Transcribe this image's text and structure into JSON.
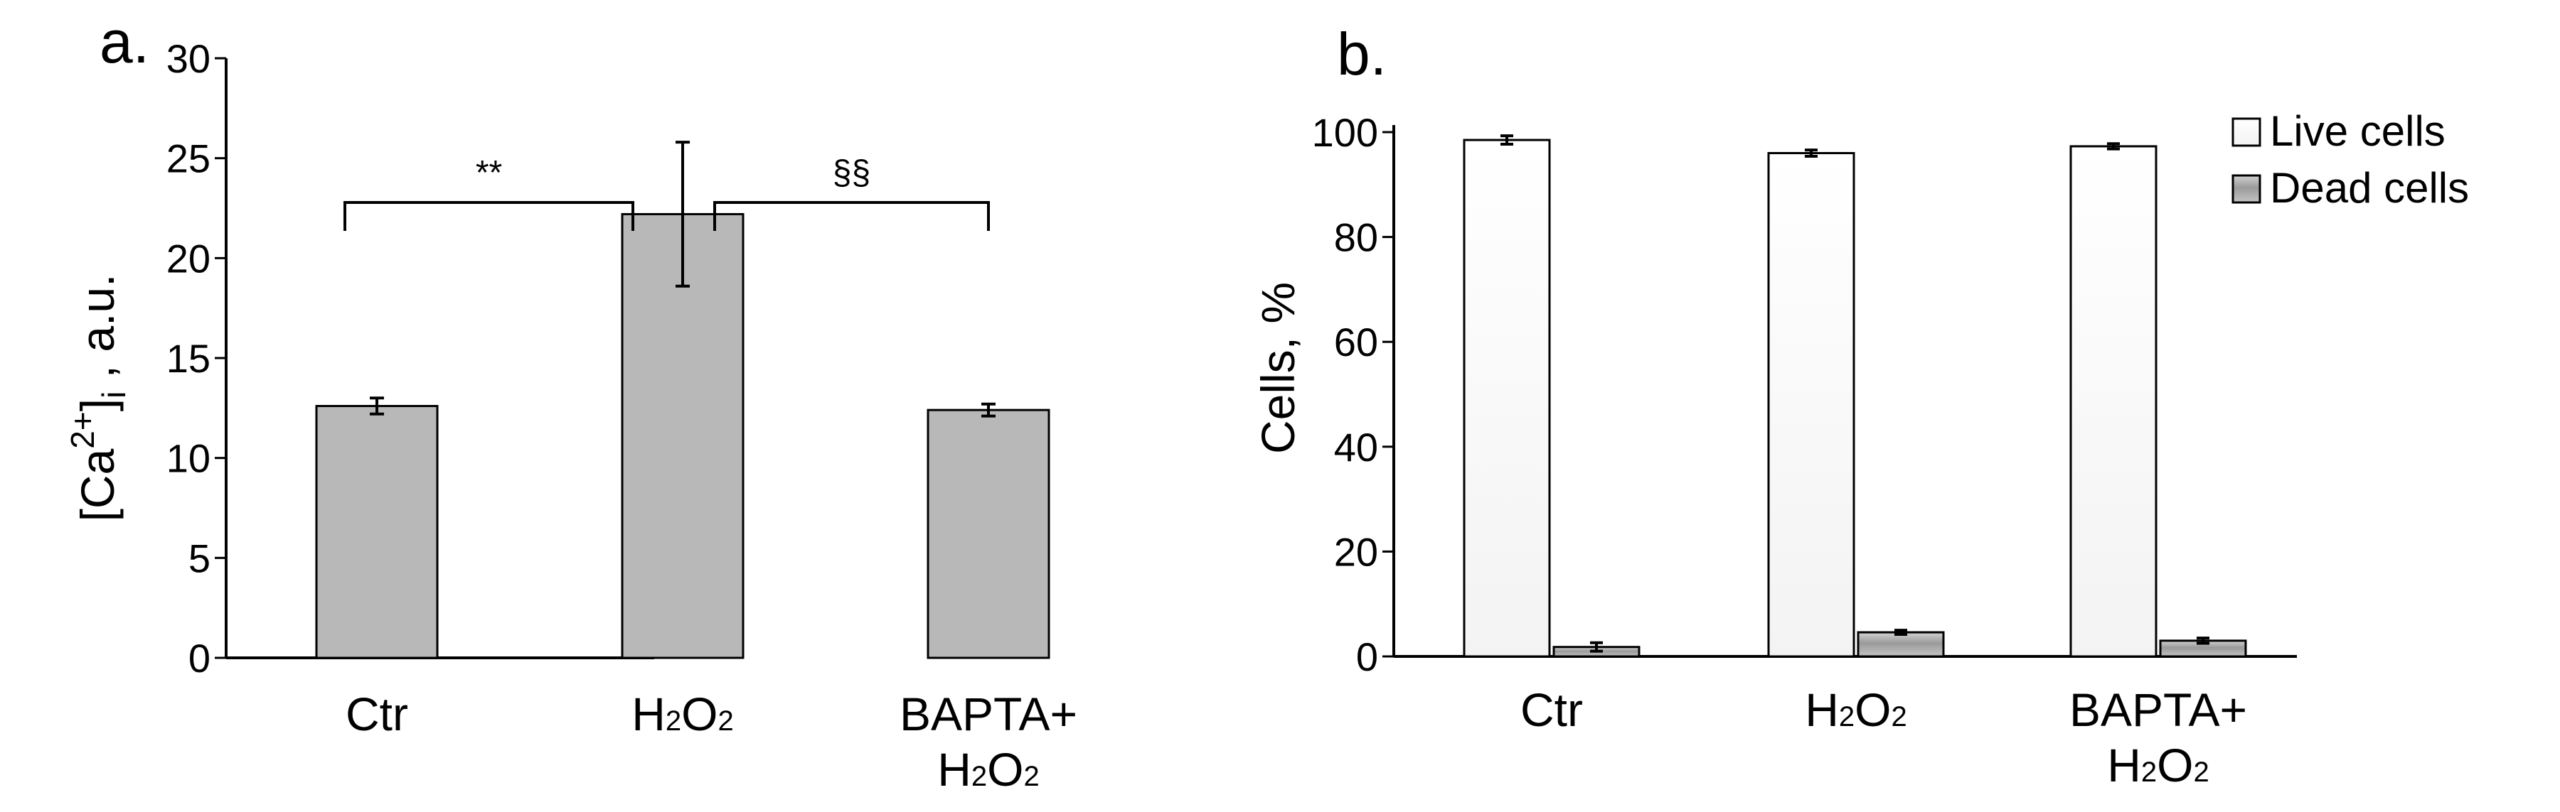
{
  "chart_data": [
    {
      "panel_label": "a.",
      "type": "bar",
      "ylabel": "[Ca2+]i , a.u.",
      "ylabel_parts": {
        "base": "[Ca",
        "sup": "2+",
        "close": "]",
        "sub": "i",
        "tail": " , a.u."
      },
      "ylim": [
        0,
        30
      ],
      "yticks": [
        "0",
        "5",
        "10",
        "15",
        "20",
        "25",
        "30"
      ],
      "categories": [
        "Ctr",
        "H2O2",
        "BAPTA+ H2O2"
      ],
      "category_labels": [
        {
          "lines": [
            [
              {
                "t": "Ctr"
              }
            ]
          ]
        },
        {
          "lines": [
            [
              {
                "t": "H"
              },
              {
                "t": "2",
                "sub": true
              },
              {
                "t": "O"
              },
              {
                "t": "2",
                "sub": true
              }
            ]
          ]
        },
        {
          "lines": [
            [
              {
                "t": "BAPTA+"
              }
            ],
            [
              {
                "t": "H"
              },
              {
                "t": "2",
                "sub": true
              },
              {
                "t": "O"
              },
              {
                "t": "2",
                "sub": true
              }
            ]
          ]
        }
      ],
      "values": [
        12.6,
        22.2,
        12.4
      ],
      "errors": [
        0.4,
        3.6,
        0.3
      ],
      "bar_color": "#b8b8b8",
      "grid": false,
      "annotations": [
        {
          "label": "**",
          "from": 0,
          "to": 1
        },
        {
          "label": "§§",
          "from": 1,
          "to": 2
        }
      ]
    },
    {
      "panel_label": "b.",
      "type": "bar",
      "ylabel": "Cells, %",
      "ylim": [
        0,
        100
      ],
      "yticks": [
        "0",
        "20",
        "40",
        "60",
        "80",
        "100"
      ],
      "categories": [
        "Ctr",
        "H2O2",
        "BAPTA+ H2O2"
      ],
      "category_labels": [
        {
          "lines": [
            [
              {
                "t": "Ctr"
              }
            ]
          ]
        },
        {
          "lines": [
            [
              {
                "t": "H"
              },
              {
                "t": "2",
                "sub": true
              },
              {
                "t": "O"
              },
              {
                "t": "2",
                "sub": true
              }
            ]
          ]
        },
        {
          "lines": [
            [
              {
                "t": "BAPTA+"
              }
            ],
            [
              {
                "t": "H"
              },
              {
                "t": "2",
                "sub": true
              },
              {
                "t": "O"
              },
              {
                "t": "2",
                "sub": true
              }
            ]
          ]
        }
      ],
      "series": [
        {
          "name": "Live cells",
          "values": [
            98.5,
            96.0,
            97.3
          ],
          "errors": [
            0.8,
            0.6,
            0.5
          ],
          "color": "#ffffff"
        },
        {
          "name": "Dead cells",
          "values": [
            1.8,
            4.6,
            3.0
          ],
          "errors": [
            0.8,
            0.4,
            0.5
          ],
          "color": "#a6a6a6"
        }
      ],
      "legend_position": "top-right",
      "grid": false
    }
  ]
}
